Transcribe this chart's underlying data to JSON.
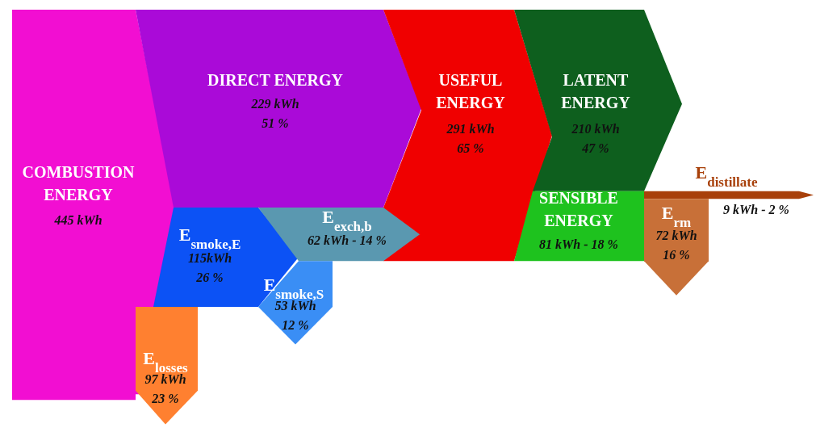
{
  "chart_data": {
    "type": "other",
    "categories": [
      "COMBUSTION ENERGY",
      "DIRECT ENERGY",
      "USEFUL ENERGY",
      "LATENT ENERGY",
      "E$_{smoke,E}$",
      "E$_{exch,b}$",
      "E$_{smoke,S}$",
      "E$_{losses}$",
      "SENSIBLE ENERGY",
      "E$_{distillate}$",
      "E$_{rm}$"
    ],
    "values": [
      445,
      229,
      291,
      210,
      115,
      62,
      53,
      97,
      81,
      9,
      72
    ],
    "value_labels": [
      "445 kWh",
      "229 kWh\n51 %",
      "291 kWh\n65 %",
      "210 kWh\n47 %",
      "115kWh\n26 %",
      "62 kWh - 14 %",
      "53 kWh\n12 %",
      "97 kWh\n23 %",
      "81 kWh - 18 %",
      "9 kWh - 2 %",
      "72 kWh\n16 %"
    ],
    "colors": [
      "#f20ed2",
      "#aa0ad8",
      "#f00000",
      "#0e5f1e",
      "#0c52f5",
      "#5a98b0",
      "#3a8ef5",
      "#ff8030",
      "#1ec21e",
      "#a8400a",
      "#c87038"
    ]
  }
}
